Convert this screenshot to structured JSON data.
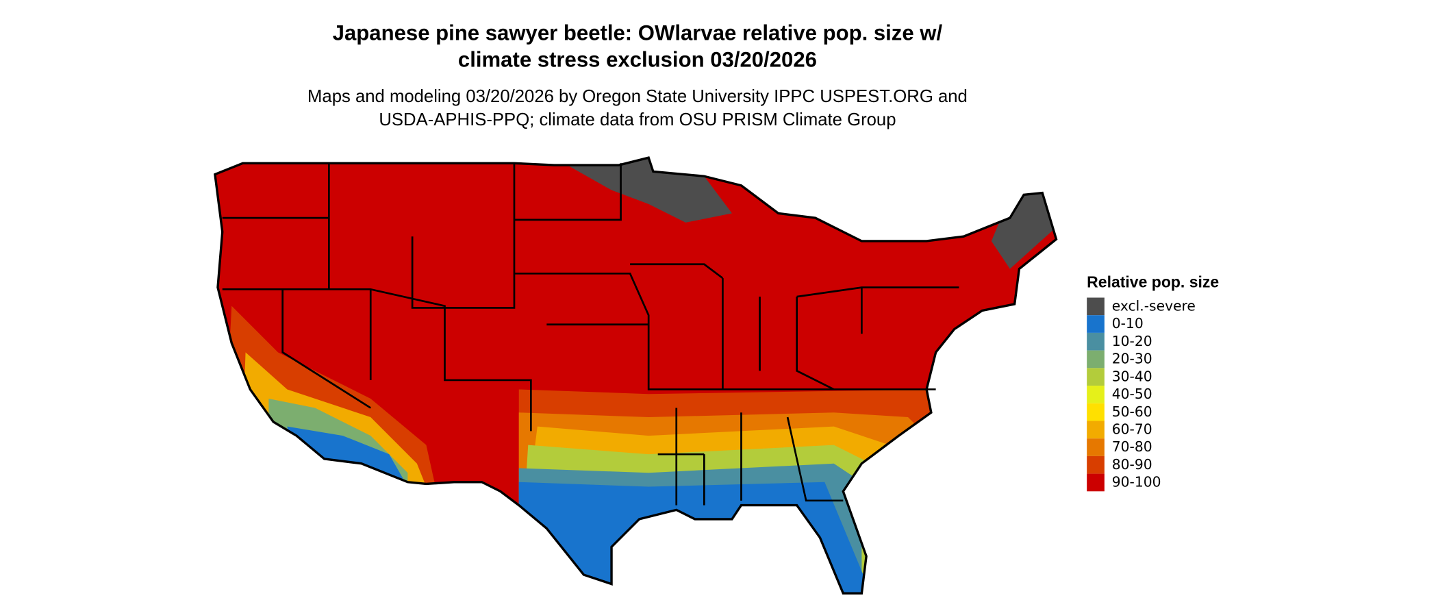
{
  "title": [
    "Japanese pine sawyer beetle: OWlarvae relative pop. size w/",
    "climate stress exclusion 03/20/2026"
  ],
  "subtitle": [
    "Maps and modeling 03/20/2026 by Oregon State University IPPC USPEST.ORG and",
    "USDA-APHIS-PPQ; climate data from OSU PRISM Climate Group"
  ],
  "legend": {
    "title": "Relative pop. size",
    "items": [
      {
        "label": "excl.-severe",
        "color": "#4d4d4d"
      },
      {
        "label": "0-10",
        "color": "#1874cd"
      },
      {
        "label": "10-20",
        "color": "#4a8fa1"
      },
      {
        "label": "20-30",
        "color": "#7cae6f"
      },
      {
        "label": "30-40",
        "color": "#b3cc3b"
      },
      {
        "label": "40-50",
        "color": "#e5f01a"
      },
      {
        "label": "50-60",
        "color": "#ffe000"
      },
      {
        "label": "60-70",
        "color": "#f2ab00"
      },
      {
        "label": "70-80",
        "color": "#e67800"
      },
      {
        "label": "80-90",
        "color": "#d83e00"
      },
      {
        "label": "90-100",
        "color": "#cc0000"
      }
    ]
  }
}
